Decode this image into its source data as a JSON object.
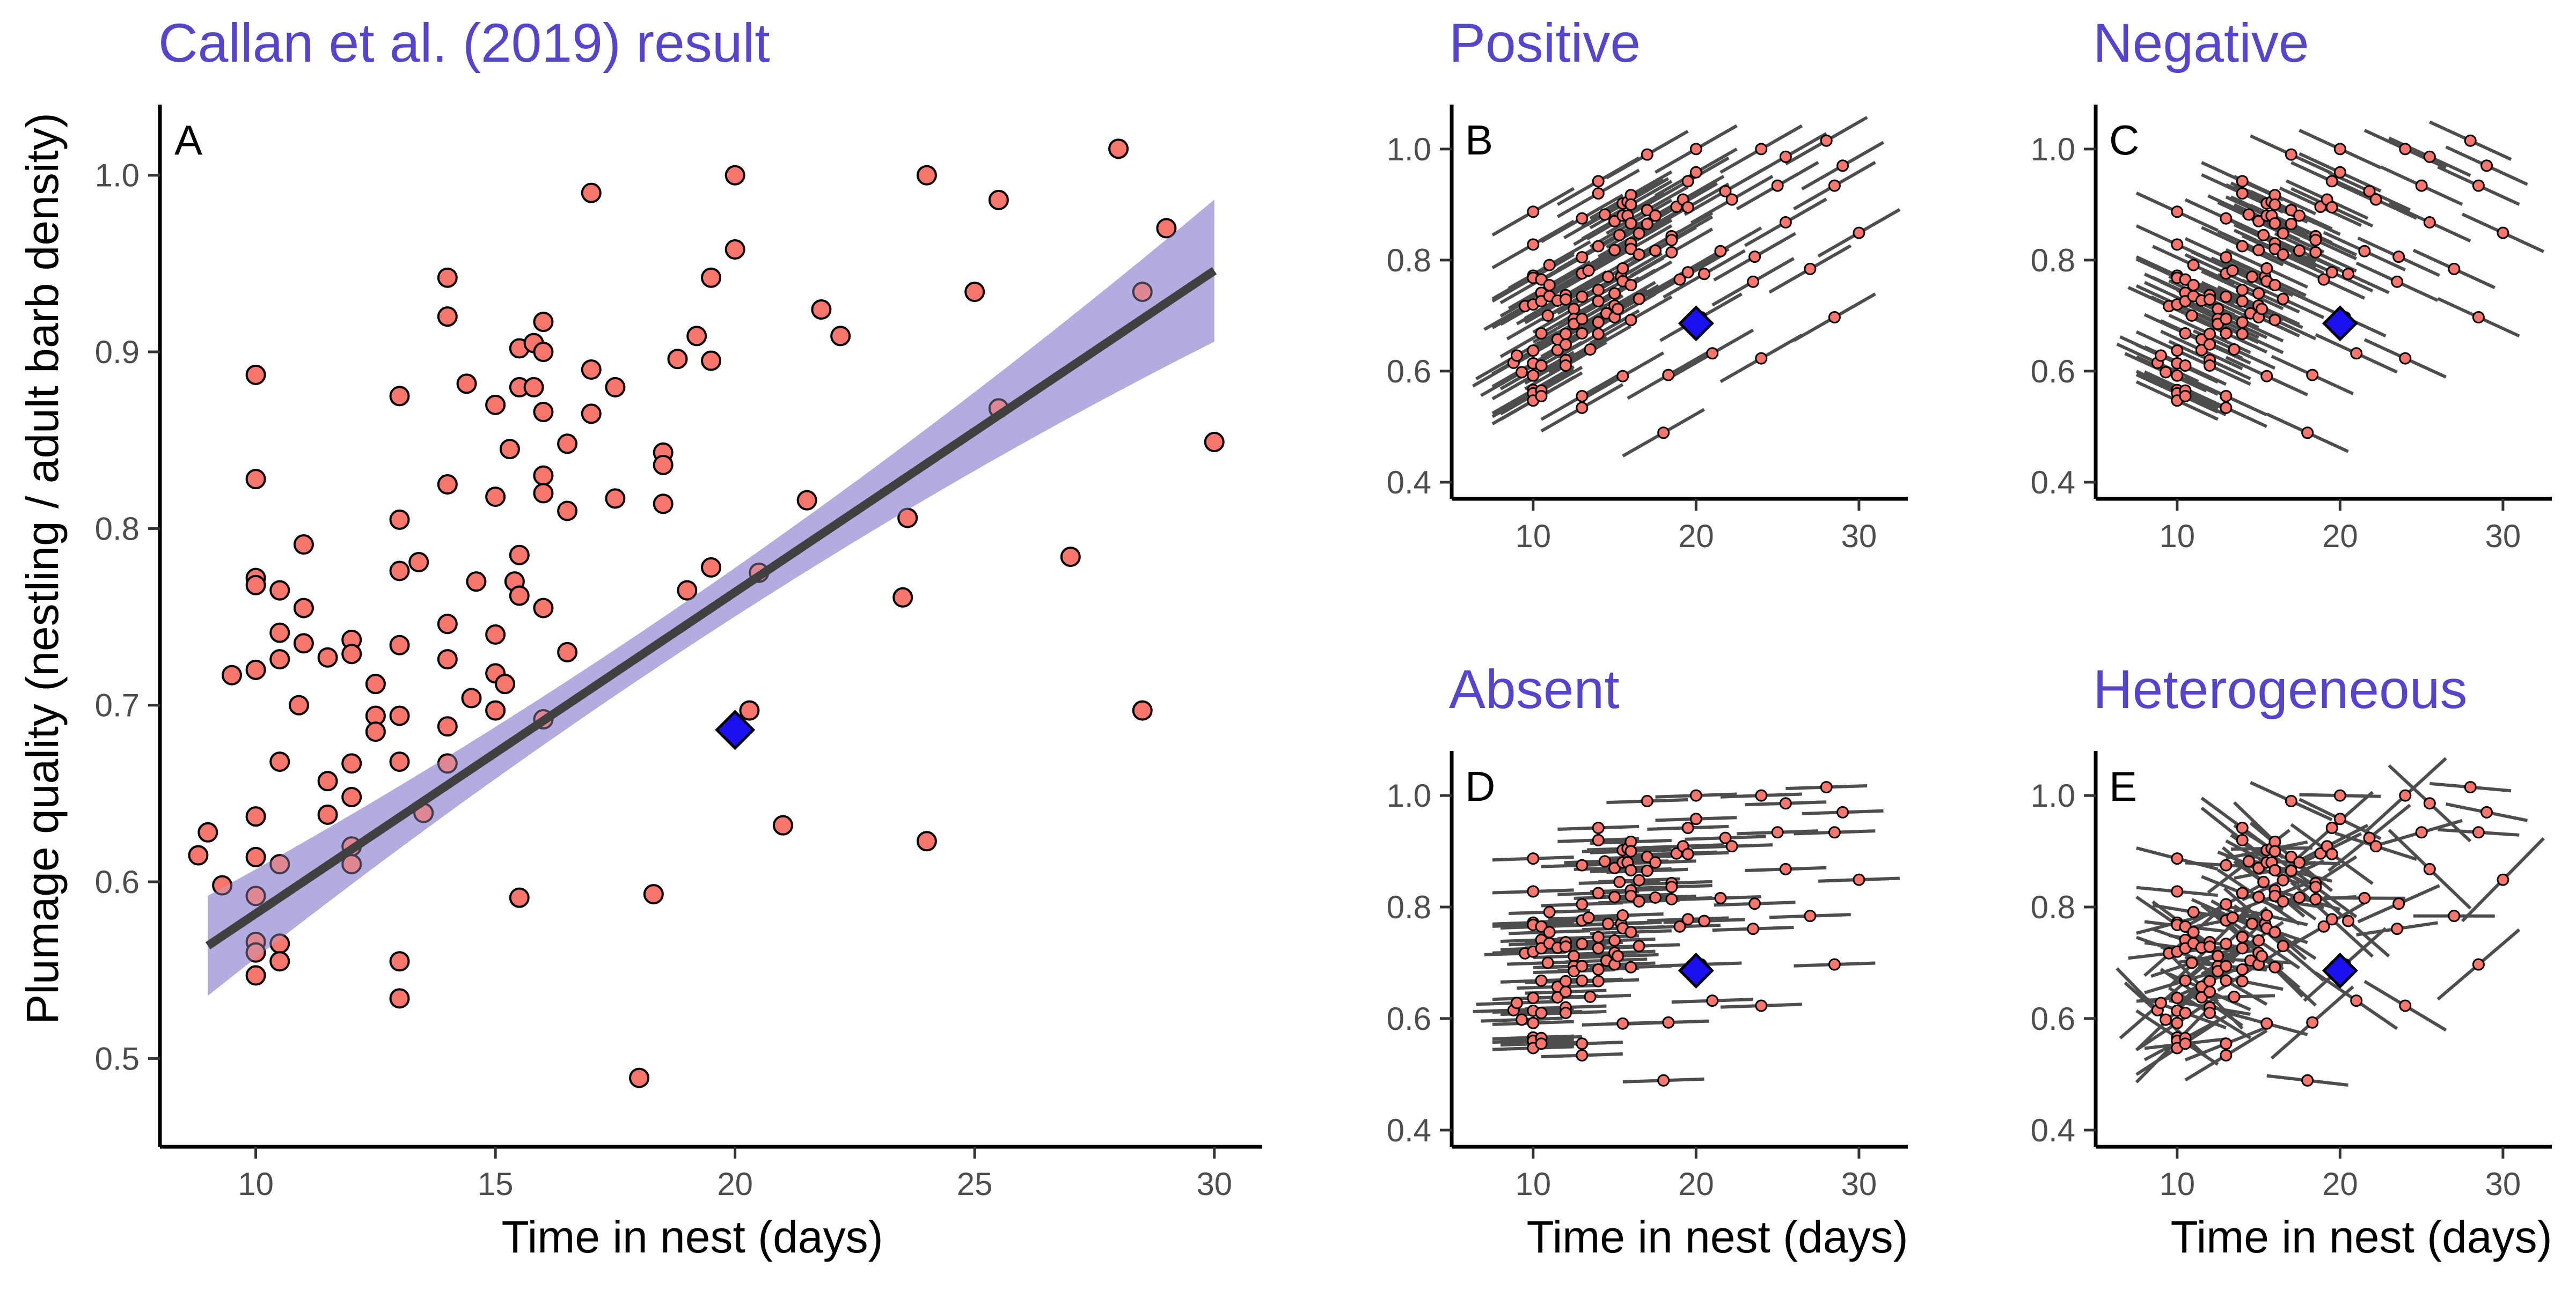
{
  "colors": {
    "point_fill": "#f8766d",
    "point_stroke": "#000000",
    "highlight_fill": "#1a11ee",
    "ribbon": "#b3addf",
    "trend_line": "#404040",
    "segment": "#4d4d4d",
    "title": "#5544cc"
  },
  "chart_data": [
    {
      "id": "A",
      "type": "scatter",
      "title": "Callan et al. (2019) result",
      "panel_label": "A",
      "xlabel": "Time in nest (days)",
      "ylabel": "Plumage quality (nestling / adult barb density)",
      "xlim": [
        8,
        31
      ],
      "ylim": [
        0.45,
        1.04
      ],
      "xticks": [
        10,
        15,
        20,
        25,
        30
      ],
      "yticks": [
        0.5,
        0.6,
        0.7,
        0.8,
        0.9,
        1.0
      ],
      "ytick_labels": [
        "0.5",
        "0.6",
        "0.7",
        "0.8",
        "0.9",
        "1.0"
      ],
      "grid": false,
      "regression": {
        "intercept": 0.4,
        "slope": 0.0182,
        "x_range": [
          9,
          30
        ],
        "ci_halfwidth_at_ends": 0.03,
        "ci_halfwidth_center": 0.013,
        "x_center": 18
      },
      "highlight": {
        "x": 20,
        "y": 0.686,
        "marker": "diamond"
      },
      "points": [
        [
          8.8,
          0.615
        ],
        [
          9.0,
          0.628
        ],
        [
          9.3,
          0.598
        ],
        [
          9.5,
          0.717
        ],
        [
          10.0,
          0.887
        ],
        [
          10.0,
          0.828
        ],
        [
          10.0,
          0.772
        ],
        [
          10.0,
          0.768
        ],
        [
          10.0,
          0.72
        ],
        [
          10.0,
          0.637
        ],
        [
          10.0,
          0.614
        ],
        [
          10.0,
          0.592
        ],
        [
          10.0,
          0.566
        ],
        [
          10.0,
          0.56
        ],
        [
          10.0,
          0.547
        ],
        [
          10.5,
          0.765
        ],
        [
          10.5,
          0.741
        ],
        [
          10.5,
          0.726
        ],
        [
          10.5,
          0.668
        ],
        [
          10.5,
          0.61
        ],
        [
          10.5,
          0.565
        ],
        [
          10.5,
          0.555
        ],
        [
          10.9,
          0.7
        ],
        [
          11.0,
          0.791
        ],
        [
          11.0,
          0.755
        ],
        [
          11.0,
          0.735
        ],
        [
          11.5,
          0.727
        ],
        [
          11.5,
          0.657
        ],
        [
          11.5,
          0.638
        ],
        [
          12.0,
          0.737
        ],
        [
          12.0,
          0.729
        ],
        [
          12.0,
          0.667
        ],
        [
          12.0,
          0.648
        ],
        [
          12.0,
          0.62
        ],
        [
          12.0,
          0.61
        ],
        [
          12.5,
          0.712
        ],
        [
          12.5,
          0.694
        ],
        [
          12.5,
          0.685
        ],
        [
          13.0,
          0.875
        ],
        [
          13.0,
          0.805
        ],
        [
          13.0,
          0.776
        ],
        [
          13.0,
          0.734
        ],
        [
          13.0,
          0.694
        ],
        [
          13.0,
          0.668
        ],
        [
          13.0,
          0.555
        ],
        [
          13.0,
          0.534
        ],
        [
          13.4,
          0.781
        ],
        [
          13.5,
          0.639
        ],
        [
          14.0,
          0.942
        ],
        [
          14.0,
          0.92
        ],
        [
          14.0,
          0.825
        ],
        [
          14.0,
          0.746
        ],
        [
          14.0,
          0.726
        ],
        [
          14.0,
          0.688
        ],
        [
          14.0,
          0.667
        ],
        [
          14.4,
          0.882
        ],
        [
          14.5,
          0.704
        ],
        [
          14.6,
          0.77
        ],
        [
          15.0,
          0.87
        ],
        [
          15.0,
          0.818
        ],
        [
          15.0,
          0.74
        ],
        [
          15.0,
          0.718
        ],
        [
          15.0,
          0.697
        ],
        [
          15.2,
          0.712
        ],
        [
          15.3,
          0.845
        ],
        [
          15.4,
          0.77
        ],
        [
          15.5,
          0.902
        ],
        [
          15.5,
          0.88
        ],
        [
          15.5,
          0.785
        ],
        [
          15.5,
          0.762
        ],
        [
          15.5,
          0.591
        ],
        [
          15.8,
          0.905
        ],
        [
          15.8,
          0.88
        ],
        [
          16.0,
          0.917
        ],
        [
          16.0,
          0.9
        ],
        [
          16.0,
          0.866
        ],
        [
          16.0,
          0.83
        ],
        [
          16.0,
          0.82
        ],
        [
          16.0,
          0.755
        ],
        [
          16.0,
          0.692
        ],
        [
          16.5,
          0.848
        ],
        [
          16.5,
          0.81
        ],
        [
          16.5,
          0.73
        ],
        [
          17.0,
          0.99
        ],
        [
          17.0,
          0.89
        ],
        [
          17.0,
          0.865
        ],
        [
          17.5,
          0.88
        ],
        [
          17.5,
          0.817
        ],
        [
          18.0,
          0.489
        ],
        [
          18.3,
          0.593
        ],
        [
          18.5,
          0.843
        ],
        [
          18.5,
          0.836
        ],
        [
          18.5,
          0.814
        ],
        [
          18.8,
          0.896
        ],
        [
          19.0,
          0.765
        ],
        [
          19.2,
          0.909
        ],
        [
          19.5,
          0.942
        ],
        [
          19.5,
          0.895
        ],
        [
          19.5,
          0.778
        ],
        [
          20.0,
          1.0
        ],
        [
          20.0,
          0.958
        ],
        [
          20.3,
          0.697
        ],
        [
          20.5,
          0.775
        ],
        [
          21.0,
          0.632
        ],
        [
          21.5,
          0.816
        ],
        [
          21.8,
          0.924
        ],
        [
          22.2,
          0.909
        ],
        [
          23.5,
          0.761
        ],
        [
          23.6,
          0.806
        ],
        [
          24.0,
          1.0
        ],
        [
          24.0,
          0.623
        ],
        [
          25.0,
          0.934
        ],
        [
          25.5,
          0.986
        ],
        [
          25.5,
          0.868
        ],
        [
          27.0,
          0.784
        ],
        [
          28.0,
          1.015
        ],
        [
          28.5,
          0.934
        ],
        [
          28.5,
          0.697
        ],
        [
          29.0,
          0.97
        ],
        [
          30.0,
          0.849
        ]
      ]
    },
    {
      "id": "B",
      "type": "scatter",
      "title": "Positive",
      "panel_label": "B",
      "xlabel": "",
      "ylabel": "",
      "xlim": [
        5,
        33
      ],
      "ylim": [
        0.37,
        1.08
      ],
      "xticks": [
        10,
        20,
        30
      ],
      "yticks": [
        0.4,
        0.6,
        0.8,
        1.0
      ],
      "ytick_labels": [
        "0.4",
        "0.6",
        "0.8",
        "1.0"
      ],
      "segment_slope": 0.0168,
      "segment_halfwidth": 2.5,
      "highlight": {
        "x": 20,
        "y": 0.686,
        "marker": "diamond"
      }
    },
    {
      "id": "C",
      "type": "scatter",
      "title": "Negative",
      "panel_label": "C",
      "xlabel": "",
      "ylabel": "",
      "xlim": [
        5,
        33
      ],
      "ylim": [
        0.37,
        1.08
      ],
      "xticks": [
        10,
        20,
        30
      ],
      "yticks": [
        0.4,
        0.6,
        0.8,
        1.0
      ],
      "ytick_labels": [
        "0.4",
        "0.6",
        "0.8",
        "1.0"
      ],
      "segment_slope": -0.0135,
      "segment_halfwidth": 2.5,
      "highlight": {
        "x": 20,
        "y": 0.686,
        "marker": "diamond"
      }
    },
    {
      "id": "D",
      "type": "scatter",
      "title": "Absent",
      "panel_label": "D",
      "xlabel": "Time in nest (days)",
      "ylabel": "",
      "xlim": [
        5,
        33
      ],
      "ylim": [
        0.37,
        1.08
      ],
      "xticks": [
        10,
        20,
        30
      ],
      "yticks": [
        0.4,
        0.6,
        0.8,
        1.0
      ],
      "ytick_labels": [
        "0.4",
        "0.6",
        "0.8",
        "1.0"
      ],
      "segment_slope": 0.001,
      "segment_halfwidth": 2.5,
      "highlight": {
        "x": 20,
        "y": 0.686,
        "marker": "diamond"
      }
    },
    {
      "id": "E",
      "type": "scatter",
      "title": "Heterogeneous",
      "panel_label": "E",
      "xlabel": "Time in nest (days)",
      "ylabel": "",
      "xlim": [
        5,
        33
      ],
      "ylim": [
        0.37,
        1.08
      ],
      "xticks": [
        10,
        20,
        30
      ],
      "yticks": [
        0.4,
        0.6,
        0.8,
        1.0
      ],
      "ytick_labels": [
        "0.4",
        "0.6",
        "0.8",
        "1.0"
      ],
      "segment_slope": "varies",
      "segment_halfwidth": 2.5,
      "highlight": {
        "x": 20,
        "y": 0.686,
        "marker": "diamond"
      }
    }
  ]
}
